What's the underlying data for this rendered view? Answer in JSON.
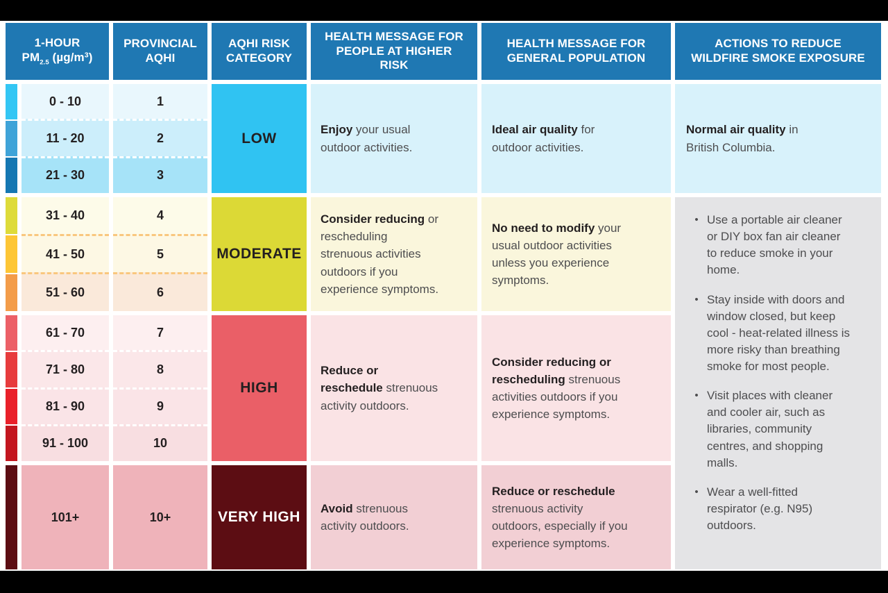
{
  "icons": {
    "bullet": "•"
  },
  "colors": {
    "header_bg": "#1f78b3",
    "low": {
      "cell": "#30c3f2",
      "strips": [
        "#33c6f4",
        "#3fa3d8",
        "#1577b2"
      ],
      "row_bgs": [
        "#e9f7fd",
        "#cceefb",
        "#a6e3f8"
      ],
      "msg_bg": "#d8f2fb"
    },
    "moderate": {
      "cell": "#dcd936",
      "strips": [
        "#dedb3a",
        "#fdc636",
        "#f39c49"
      ],
      "row_bgs": [
        "#fdfbe9",
        "#fdf8e4",
        "#fae9da"
      ],
      "msg_bg": "#faf6dc"
    },
    "high": {
      "cell": "#ea5f67",
      "strips": [
        "#ec6067",
        "#e73c3d",
        "#e9202a",
        "#c3161f"
      ],
      "row_bgs": [
        "#fdeff0",
        "#fbe7e9",
        "#fae4e7",
        "#f8dee1"
      ],
      "msg_bg": "#fae3e5"
    },
    "very_high": {
      "cell": "#5c0d13",
      "strips": [
        "#5c0d13"
      ],
      "row_bgs": [
        "#efb3ba"
      ],
      "msg_bg": "#f2cfd4"
    },
    "actions_bg": "#e4e4e6"
  },
  "header": {
    "pm25": {
      "line1": "1-HOUR",
      "base": "PM",
      "sub": "2.5",
      "unit_open": " (µg/m",
      "sup": "3",
      "unit_close": ")"
    },
    "provincial_aqhi": "PROVINCIAL AQHI",
    "risk_category": "AQHI RISK CATEGORY",
    "higher_risk": "HEALTH MESSAGE FOR PEOPLE AT HIGHER RISK",
    "general_population": "HEALTH MESSAGE FOR GENERAL POPULATION",
    "actions": "ACTIONS TO REDUCE WILDFIRE SMOKE EXPOSURE"
  },
  "table": {
    "rows": [
      {
        "pm": "0 - 10",
        "aqhi": "1"
      },
      {
        "pm": "11 - 20",
        "aqhi": "2"
      },
      {
        "pm": "21 - 30",
        "aqhi": "3"
      },
      {
        "pm": "31 - 40",
        "aqhi": "4"
      },
      {
        "pm": "41 - 50",
        "aqhi": "5"
      },
      {
        "pm": "51 - 60",
        "aqhi": "6"
      },
      {
        "pm": "61 - 70",
        "aqhi": "7"
      },
      {
        "pm": "71 - 80",
        "aqhi": "8"
      },
      {
        "pm": "81 - 90",
        "aqhi": "9"
      },
      {
        "pm": "91 - 100",
        "aqhi": "10"
      },
      {
        "pm": "101+",
        "aqhi": "10+"
      }
    ],
    "groups": [
      {
        "category": "LOW",
        "higher_risk": {
          "bold": "Enjoy",
          "rest": " your usual outdoor activities."
        },
        "general": {
          "bold": "Ideal air quality",
          "rest": " for outdoor activities."
        },
        "actions": {
          "bold": "Normal air quality",
          "rest": " in British Columbia."
        }
      },
      {
        "category": "MODERATE",
        "higher_risk": {
          "bold": "Consider reducing",
          "rest": " or rescheduling strenuous activities outdoors if you experience symptoms."
        },
        "general": {
          "bold": "No need to modify",
          "rest": " your usual outdoor activities unless you experience symptoms."
        }
      },
      {
        "category": "HIGH",
        "higher_risk": {
          "bold": "Reduce or reschedule",
          "rest": " strenuous activity outdoors."
        },
        "general": {
          "bold": "Consider reducing or rescheduling",
          "rest": " strenuous activities outdoors if you experience symptoms."
        }
      },
      {
        "category": "VERY HIGH",
        "higher_risk": {
          "bold": "Avoid",
          "rest": " strenuous activity outdoors."
        },
        "general": {
          "bold": "Reduce or reschedule",
          "rest": " strenuous activity outdoors, especially if you experience symptoms."
        }
      }
    ],
    "actions_bullets": [
      "Use a portable air cleaner or DIY box fan air cleaner to reduce smoke in your home.",
      "Stay inside with doors and window closed, but keep cool - heat-related illness is more risky than breathing smoke for most people.",
      "Visit places with cleaner and cooler air, such as libraries, community centres, and shopping malls.",
      "Wear a well-fitted respirator (e.g. N95) outdoors."
    ]
  },
  "chart_data": {
    "type": "table",
    "columns": [
      "1-HOUR PM2.5 (µg/m³)",
      "PROVINCIAL AQHI",
      "AQHI RISK CATEGORY",
      "HEALTH MESSAGE FOR PEOPLE AT HIGHER RISK",
      "HEALTH MESSAGE FOR GENERAL POPULATION",
      "ACTIONS TO REDUCE WILDFIRE SMOKE EXPOSURE"
    ],
    "groups": [
      {
        "category": "LOW",
        "pm_ranges": [
          "0 - 10",
          "11 - 20",
          "21 - 30"
        ],
        "aqhi": [
          "1",
          "2",
          "3"
        ],
        "higher_risk": "Enjoy your usual outdoor activities.",
        "general": "Ideal air quality for outdoor activities.",
        "actions": "Normal air quality in British Columbia."
      },
      {
        "category": "MODERATE",
        "pm_ranges": [
          "31 - 40",
          "41 - 50",
          "51 - 60"
        ],
        "aqhi": [
          "4",
          "5",
          "6"
        ],
        "higher_risk": "Consider reducing or rescheduling strenuous activities outdoors if you experience symptoms.",
        "general": "No need to modify your usual outdoor activities unless you experience symptoms."
      },
      {
        "category": "HIGH",
        "pm_ranges": [
          "61 - 70",
          "71 - 80",
          "81 - 90",
          "91 - 100"
        ],
        "aqhi": [
          "7",
          "8",
          "9",
          "10"
        ],
        "higher_risk": "Reduce or reschedule strenuous activity outdoors.",
        "general": "Consider reducing or rescheduling strenuous activities outdoors if you experience symptoms."
      },
      {
        "category": "VERY HIGH",
        "pm_ranges": [
          "101+"
        ],
        "aqhi": [
          "10+"
        ],
        "higher_risk": "Avoid strenuous activity outdoors.",
        "general": "Reduce or reschedule strenuous activity outdoors, especially if you experience symptoms."
      }
    ],
    "shared_actions_moderate_to_very_high": [
      "Use a portable air cleaner or DIY box fan air cleaner to reduce smoke in your home.",
      "Stay inside with doors and window closed, but keep cool - heat-related illness is more risky than breathing smoke for most people.",
      "Visit places with cleaner and cooler air, such as libraries, community centres, and shopping malls.",
      "Wear a well-fitted respirator (e.g. N95) outdoors."
    ]
  }
}
